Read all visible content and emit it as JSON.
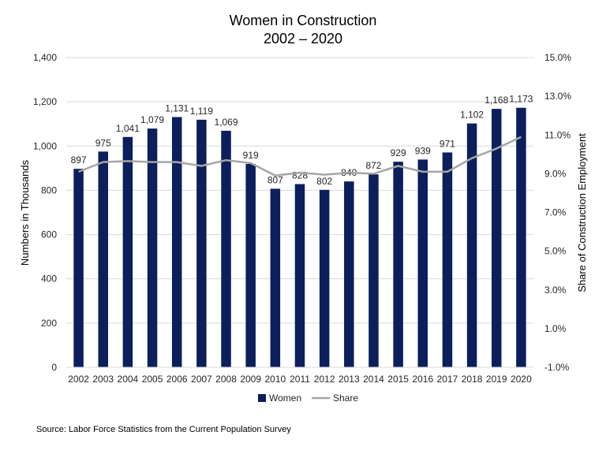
{
  "chart_data": {
    "type": "bar",
    "title": [
      "Women in Construction",
      "2002 – 2020"
    ],
    "categories": [
      "2002",
      "2003",
      "2004",
      "2005",
      "2006",
      "2007",
      "2008",
      "2009",
      "2010",
      "2011",
      "2012",
      "2013",
      "2014",
      "2015",
      "2016",
      "2017",
      "2018",
      "2019",
      "2020"
    ],
    "series": [
      {
        "name": "Women",
        "type": "bar",
        "axis": "left",
        "color": "#0b1f5c",
        "values": [
          897,
          975,
          1041,
          1079,
          1131,
          1119,
          1069,
          919,
          807,
          828,
          802,
          840,
          872,
          929,
          939,
          971,
          1102,
          1168,
          1173
        ],
        "labels": [
          "897",
          "975",
          "1,041",
          "1,079",
          "1,131",
          "1,119",
          "1,069",
          "919",
          "807",
          "828",
          "802",
          "840",
          "872",
          "929",
          "939",
          "971",
          "1,102",
          "1,168",
          "1,173"
        ]
      },
      {
        "name": "Share",
        "type": "line",
        "axis": "right",
        "color": "#a6a6a6",
        "values": [
          9.1,
          9.6,
          9.65,
          9.6,
          9.6,
          9.4,
          9.7,
          9.55,
          8.9,
          9.05,
          8.95,
          9.05,
          9.0,
          9.4,
          9.1,
          9.1,
          9.8,
          10.3,
          10.9
        ]
      }
    ],
    "ylabel": "Numbers in Thousands",
    "ylim": [
      0,
      1400
    ],
    "yticks": [
      "0",
      "200",
      "400",
      "600",
      "800",
      "1,000",
      "1,200",
      "1,400"
    ],
    "y2label": "Share of Construction Employment",
    "y2lim": [
      -1.0,
      15.0
    ],
    "y2ticks": [
      "-1.0%",
      "1.0%",
      "3.0%",
      "5.0%",
      "7.0%",
      "9.0%",
      "11.0%",
      "13.0%",
      "15.0%"
    ],
    "grid": true,
    "legend_position": "bottom"
  },
  "source": "Source: Labor Force Statistics from the Current Population Survey"
}
